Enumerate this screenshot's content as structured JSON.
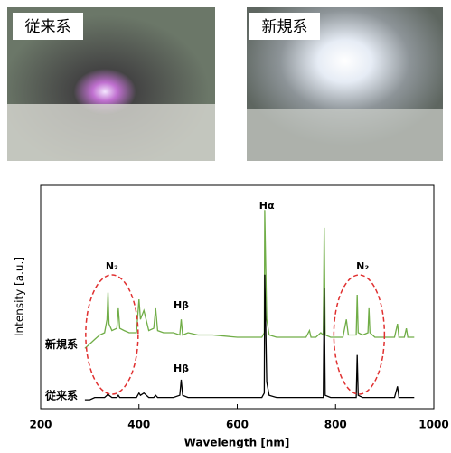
{
  "photos": [
    {
      "label": "従来系"
    },
    {
      "label": "新規系"
    }
  ],
  "chart_data": {
    "type": "line",
    "x_label": "Wavelength [nm]",
    "y_label": "Intensity [a.u.]",
    "xlim": [
      200,
      1000
    ],
    "xticks": [
      200,
      400,
      600,
      800,
      1000
    ],
    "ylim": [
      0,
      100
    ],
    "annotations": [
      "Hα",
      "Hβ",
      "Hβ",
      "N₂",
      "N₂"
    ],
    "x": [
      290,
      300,
      310,
      320,
      330,
      335,
      337,
      339,
      345,
      355,
      358,
      361,
      370,
      380,
      395,
      400,
      403,
      410,
      420,
      430,
      434,
      438,
      450,
      470,
      483,
      486,
      489,
      500,
      520,
      550,
      600,
      640,
      650,
      655,
      656,
      657,
      660,
      665,
      680,
      700,
      740,
      747,
      750,
      760,
      770,
      775,
      777,
      779,
      790,
      800,
      815,
      822,
      826,
      835,
      842,
      844,
      846,
      855,
      866,
      868,
      870,
      880,
      900,
      920,
      926,
      929,
      940,
      944,
      947,
      960
    ],
    "series": [
      {
        "name": "新規系",
        "color": "#70ad47",
        "values": [
          27,
          29,
          31,
          33,
          34,
          40,
          52,
          38,
          35,
          36,
          45,
          36,
          35,
          34,
          34,
          49,
          40,
          44,
          35,
          36,
          45,
          35,
          34,
          34,
          33,
          40,
          33,
          34,
          33,
          33,
          32,
          32,
          32,
          34,
          89,
          75,
          40,
          33,
          32,
          32,
          32,
          35,
          32,
          32,
          34,
          33,
          81,
          33,
          32,
          32,
          32,
          40,
          33,
          33,
          33,
          51,
          34,
          33,
          34,
          45,
          34,
          32,
          32,
          32,
          38,
          32,
          32,
          36,
          32,
          32
        ]
      },
      {
        "name": "従来系",
        "color": "#000000",
        "values": [
          4,
          4,
          5,
          5,
          5,
          6,
          7,
          6,
          5,
          5,
          6,
          5,
          5,
          5,
          5,
          7,
          6,
          7,
          5,
          5,
          6,
          5,
          5,
          5,
          6,
          13,
          6,
          5,
          5,
          5,
          5,
          5,
          5,
          7,
          60,
          48,
          12,
          6,
          5,
          5,
          5,
          5,
          5,
          5,
          5,
          5,
          54,
          6,
          5,
          5,
          5,
          5,
          5,
          5,
          5,
          24,
          6,
          5,
          5,
          5,
          5,
          5,
          5,
          5,
          10,
          5,
          5,
          5,
          5,
          5
        ]
      }
    ]
  }
}
